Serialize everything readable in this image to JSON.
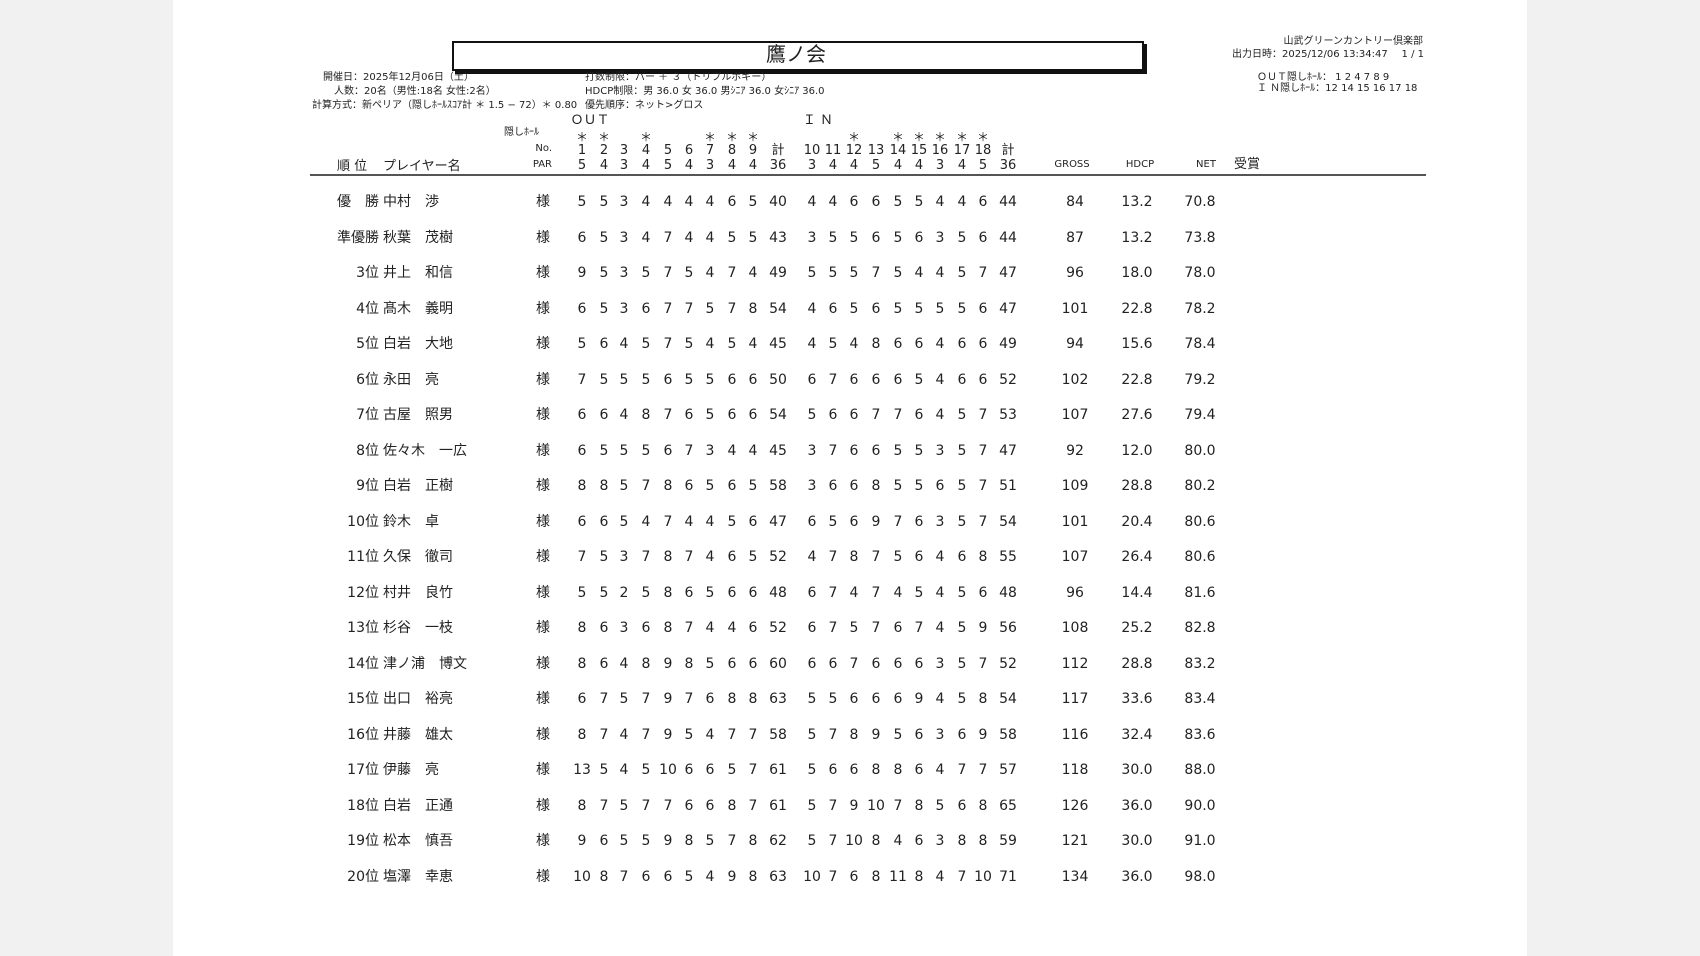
{
  "header": {
    "title": "鷹ノ会",
    "club": "山武グリーンカントリー倶楽部",
    "output_time": "出力日時：2025/12/06 13:34:47",
    "page": "1 / 1",
    "date": "開催日：2025年12月06日（土）",
    "count": "人数：20名（男性:18名 女性:2名）",
    "method": "計算方式：新ペリア（隠しﾎｰﾙｽｺｱ計 ＊ 1.5 − 72）＊ 0.80",
    "stroke_limit": "打数制限：パー ＋ ３（トリプルボギー）",
    "hdcp_limit": "HDCP制限：男 36.0 女 36.0 男ｼﾆｱ 36.0 女ｼﾆｱ 36.0",
    "priority": "優先順序：ネット>グロス",
    "out_hidden": "ＯＵＴ隠しﾎｰﾙ： 1 2 4 7 8 9",
    "in_hidden": "Ｉ Ｎ隠しﾎｰﾙ：12 14 15 16 17 18"
  },
  "table": {
    "out_label": "ＯＵＴ",
    "in_label": "Ｉ Ｎ",
    "hidden_label": "隠しﾎｰﾙ",
    "no_label": "No.",
    "par_label": "PAR",
    "rank_label": "順 位",
    "name_label": "プレイヤー名",
    "out_total_label": "計",
    "in_total_label": "計",
    "out_par_total": "36",
    "in_par_total": "36",
    "gross_label": "GROSS",
    "hdcp_label": "HDCP",
    "net_label": "NET",
    "award_label": "受賞",
    "out_holes": [
      {
        "no": "1",
        "par": "5",
        "hidden": "＊"
      },
      {
        "no": "2",
        "par": "4",
        "hidden": "＊"
      },
      {
        "no": "3",
        "par": "3"
      },
      {
        "no": "4",
        "par": "4",
        "hidden": "＊"
      },
      {
        "no": "5",
        "par": "5"
      },
      {
        "no": "6",
        "par": "4"
      },
      {
        "no": "7",
        "par": "3",
        "hidden": "＊"
      },
      {
        "no": "8",
        "par": "4",
        "hidden": "＊"
      },
      {
        "no": "9",
        "par": "4",
        "hidden": "＊"
      }
    ],
    "in_holes": [
      {
        "no": "10",
        "par": "3"
      },
      {
        "no": "11",
        "par": "4"
      },
      {
        "no": "12",
        "par": "4",
        "hidden": "＊"
      },
      {
        "no": "13",
        "par": "5"
      },
      {
        "no": "14",
        "par": "4",
        "hidden": "＊"
      },
      {
        "no": "15",
        "par": "4",
        "hidden": "＊"
      },
      {
        "no": "16",
        "par": "3",
        "hidden": "＊"
      },
      {
        "no": "17",
        "par": "4",
        "hidden": "＊"
      },
      {
        "no": "18",
        "par": "5",
        "hidden": "＊"
      }
    ],
    "rows": [
      {
        "rank": "優　勝",
        "name": "中村　渉",
        "hon": "様",
        "out": [
          "5",
          "5",
          "3",
          "4",
          "4",
          "4",
          "4",
          "6",
          "5"
        ],
        "out_total": "40",
        "in": [
          "4",
          "4",
          "6",
          "6",
          "5",
          "5",
          "4",
          "4",
          "6"
        ],
        "in_total": "44",
        "gross": "84",
        "hdcp": "13.2",
        "net": "70.8"
      },
      {
        "rank": "準優勝",
        "name": "秋葉　茂樹",
        "hon": "様",
        "out": [
          "6",
          "5",
          "3",
          "4",
          "7",
          "4",
          "4",
          "5",
          "5"
        ],
        "out_total": "43",
        "in": [
          "3",
          "5",
          "5",
          "6",
          "5",
          "6",
          "3",
          "5",
          "6"
        ],
        "in_total": "44",
        "gross": "87",
        "hdcp": "13.2",
        "net": "73.8"
      },
      {
        "rank": "3位",
        "name": "井上　和信",
        "hon": "様",
        "out": [
          "9",
          "5",
          "3",
          "5",
          "7",
          "5",
          "4",
          "7",
          "4"
        ],
        "out_total": "49",
        "in": [
          "5",
          "5",
          "5",
          "7",
          "5",
          "4",
          "4",
          "5",
          "7"
        ],
        "in_total": "47",
        "gross": "96",
        "hdcp": "18.0",
        "net": "78.0"
      },
      {
        "rank": "4位",
        "name": "髙木　義明",
        "hon": "様",
        "out": [
          "6",
          "5",
          "3",
          "6",
          "7",
          "7",
          "5",
          "7",
          "8"
        ],
        "out_total": "54",
        "in": [
          "4",
          "6",
          "5",
          "6",
          "5",
          "5",
          "5",
          "5",
          "6"
        ],
        "in_total": "47",
        "gross": "101",
        "hdcp": "22.8",
        "net": "78.2"
      },
      {
        "rank": "5位",
        "name": "白岩　大地",
        "hon": "様",
        "out": [
          "5",
          "6",
          "4",
          "5",
          "7",
          "5",
          "4",
          "5",
          "4"
        ],
        "out_total": "45",
        "in": [
          "4",
          "5",
          "4",
          "8",
          "6",
          "6",
          "4",
          "6",
          "6"
        ],
        "in_total": "49",
        "gross": "94",
        "hdcp": "15.6",
        "net": "78.4"
      },
      {
        "rank": "6位",
        "name": "永田　亮",
        "hon": "様",
        "out": [
          "7",
          "5",
          "5",
          "5",
          "6",
          "5",
          "5",
          "6",
          "6"
        ],
        "out_total": "50",
        "in": [
          "6",
          "7",
          "6",
          "6",
          "6",
          "5",
          "4",
          "6",
          "6"
        ],
        "in_total": "52",
        "gross": "102",
        "hdcp": "22.8",
        "net": "79.2"
      },
      {
        "rank": "7位",
        "name": "古屋　照男",
        "hon": "様",
        "out": [
          "6",
          "6",
          "4",
          "8",
          "7",
          "6",
          "5",
          "6",
          "6"
        ],
        "out_total": "54",
        "in": [
          "5",
          "6",
          "6",
          "7",
          "7",
          "6",
          "4",
          "5",
          "7"
        ],
        "in_total": "53",
        "gross": "107",
        "hdcp": "27.6",
        "net": "79.4"
      },
      {
        "rank": "8位",
        "name": "佐々木　一広",
        "hon": "様",
        "out": [
          "6",
          "5",
          "5",
          "5",
          "6",
          "7",
          "3",
          "4",
          "4"
        ],
        "out_total": "45",
        "in": [
          "3",
          "7",
          "6",
          "6",
          "5",
          "5",
          "3",
          "5",
          "7"
        ],
        "in_total": "47",
        "gross": "92",
        "hdcp": "12.0",
        "net": "80.0"
      },
      {
        "rank": "9位",
        "name": "白岩　正樹",
        "hon": "様",
        "out": [
          "8",
          "8",
          "5",
          "7",
          "8",
          "6",
          "5",
          "6",
          "5"
        ],
        "out_total": "58",
        "in": [
          "3",
          "6",
          "6",
          "8",
          "5",
          "5",
          "6",
          "5",
          "7"
        ],
        "in_total": "51",
        "gross": "109",
        "hdcp": "28.8",
        "net": "80.2"
      },
      {
        "rank": "10位",
        "name": "鈴木　卓",
        "hon": "様",
        "out": [
          "6",
          "6",
          "5",
          "4",
          "7",
          "4",
          "4",
          "5",
          "6"
        ],
        "out_total": "47",
        "in": [
          "6",
          "5",
          "6",
          "9",
          "7",
          "6",
          "3",
          "5",
          "7"
        ],
        "in_total": "54",
        "gross": "101",
        "hdcp": "20.4",
        "net": "80.6"
      },
      {
        "rank": "11位",
        "name": "久保　徹司",
        "hon": "様",
        "out": [
          "7",
          "5",
          "3",
          "7",
          "8",
          "7",
          "4",
          "6",
          "5"
        ],
        "out_total": "52",
        "in": [
          "4",
          "7",
          "8",
          "7",
          "5",
          "6",
          "4",
          "6",
          "8"
        ],
        "in_total": "55",
        "gross": "107",
        "hdcp": "26.4",
        "net": "80.6"
      },
      {
        "rank": "12位",
        "name": "村井　良竹",
        "hon": "様",
        "out": [
          "5",
          "5",
          "2",
          "5",
          "8",
          "6",
          "5",
          "6",
          "6"
        ],
        "out_total": "48",
        "in": [
          "6",
          "7",
          "4",
          "7",
          "4",
          "5",
          "4",
          "5",
          "6"
        ],
        "in_total": "48",
        "gross": "96",
        "hdcp": "14.4",
        "net": "81.6"
      },
      {
        "rank": "13位",
        "name": "杉谷　一枝",
        "hon": "様",
        "out": [
          "8",
          "6",
          "3",
          "6",
          "8",
          "7",
          "4",
          "4",
          "6"
        ],
        "out_total": "52",
        "in": [
          "6",
          "7",
          "5",
          "7",
          "6",
          "7",
          "4",
          "5",
          "9"
        ],
        "in_total": "56",
        "gross": "108",
        "hdcp": "25.2",
        "net": "82.8"
      },
      {
        "rank": "14位",
        "name": "津ノ浦　博文",
        "hon": "様",
        "out": [
          "8",
          "6",
          "4",
          "8",
          "9",
          "8",
          "5",
          "6",
          "6"
        ],
        "out_total": "60",
        "in": [
          "6",
          "6",
          "7",
          "6",
          "6",
          "6",
          "3",
          "5",
          "7"
        ],
        "in_total": "52",
        "gross": "112",
        "hdcp": "28.8",
        "net": "83.2"
      },
      {
        "rank": "15位",
        "name": "出口　裕亮",
        "hon": "様",
        "out": [
          "6",
          "7",
          "5",
          "7",
          "9",
          "7",
          "6",
          "8",
          "8"
        ],
        "out_total": "63",
        "in": [
          "5",
          "5",
          "6",
          "6",
          "6",
          "9",
          "4",
          "5",
          "8"
        ],
        "in_total": "54",
        "gross": "117",
        "hdcp": "33.6",
        "net": "83.4"
      },
      {
        "rank": "16位",
        "name": "井藤　雄太",
        "hon": "様",
        "out": [
          "8",
          "7",
          "4",
          "7",
          "9",
          "5",
          "4",
          "7",
          "7"
        ],
        "out_total": "58",
        "in": [
          "5",
          "7",
          "8",
          "9",
          "5",
          "6",
          "3",
          "6",
          "9"
        ],
        "in_total": "58",
        "gross": "116",
        "hdcp": "32.4",
        "net": "83.6"
      },
      {
        "rank": "17位",
        "name": "伊藤　亮",
        "hon": "様",
        "out": [
          "13",
          "5",
          "4",
          "5",
          "10",
          "6",
          "6",
          "5",
          "7"
        ],
        "out_total": "61",
        "in": [
          "5",
          "6",
          "6",
          "8",
          "8",
          "6",
          "4",
          "7",
          "7"
        ],
        "in_total": "57",
        "gross": "118",
        "hdcp": "30.0",
        "net": "88.0"
      },
      {
        "rank": "18位",
        "name": "白岩　正通",
        "hon": "様",
        "out": [
          "8",
          "7",
          "5",
          "7",
          "7",
          "6",
          "6",
          "8",
          "7"
        ],
        "out_total": "61",
        "in": [
          "5",
          "7",
          "9",
          "10",
          "7",
          "8",
          "5",
          "6",
          "8"
        ],
        "in_total": "65",
        "gross": "126",
        "hdcp": "36.0",
        "net": "90.0"
      },
      {
        "rank": "19位",
        "name": "松本　慎吾",
        "hon": "様",
        "out": [
          "9",
          "6",
          "5",
          "5",
          "9",
          "8",
          "5",
          "7",
          "8"
        ],
        "out_total": "62",
        "in": [
          "5",
          "7",
          "10",
          "8",
          "4",
          "6",
          "3",
          "8",
          "8"
        ],
        "in_total": "59",
        "gross": "121",
        "hdcp": "30.0",
        "net": "91.0"
      },
      {
        "rank": "20位",
        "name": "塩澤　幸恵",
        "hon": "様",
        "out": [
          "10",
          "8",
          "7",
          "6",
          "6",
          "5",
          "4",
          "9",
          "8"
        ],
        "out_total": "63",
        "in": [
          "10",
          "7",
          "6",
          "8",
          "11",
          "8",
          "4",
          "7",
          "10"
        ],
        "in_total": "71",
        "gross": "134",
        "hdcp": "36.0",
        "net": "98.0"
      }
    ]
  }
}
